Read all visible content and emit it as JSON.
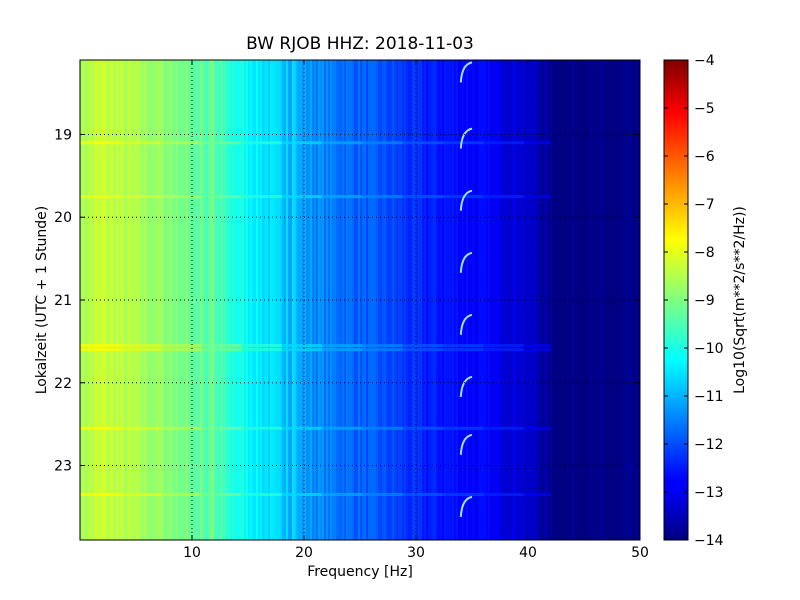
{
  "chart_data": {
    "type": "heatmap",
    "title": "BW RJOB HHZ: 2018-11-03",
    "xlabel": "Frequency [Hz]",
    "ylabel": "Lokalzeit (UTC + 1 Stunde)",
    "xlim": [
      0,
      50
    ],
    "ylim": [
      18.1,
      23.9
    ],
    "y_inverted": true,
    "x_ticks": [
      10,
      20,
      30,
      40,
      50
    ],
    "x_tick_labels": [
      "10",
      "20",
      "30",
      "40",
      "50"
    ],
    "y_ticks": [
      19,
      20,
      21,
      22,
      23
    ],
    "y_tick_labels": [
      "19",
      "20",
      "21",
      "22",
      "23"
    ],
    "grid": true,
    "colormap": "jet",
    "colorbar": {
      "label": "Log10(Sqrt(m**2/s**2/Hz))",
      "min": -14,
      "max": -4,
      "ticks": [
        -4,
        -5,
        -6,
        -7,
        -8,
        -9,
        -10,
        -11,
        -12,
        -13,
        -14
      ],
      "tick_labels": [
        "−4",
        "−5",
        "−6",
        "−7",
        "−8",
        "−9",
        "−10",
        "−11",
        "−12",
        "−13",
        "−14"
      ]
    },
    "spectral_profile": {
      "frequency_hz": [
        0,
        2,
        5,
        8,
        10,
        12,
        14,
        16,
        18,
        20,
        22,
        25,
        28,
        30,
        33,
        36,
        38,
        40,
        41,
        42,
        45,
        50
      ],
      "log10_amplitude": [
        -8.6,
        -8.3,
        -8.6,
        -8.9,
        -9.2,
        -9.6,
        -10.0,
        -10.4,
        -10.8,
        -11.2,
        -11.5,
        -11.8,
        -12.1,
        -12.4,
        -12.6,
        -12.8,
        -13.0,
        -13.2,
        -13.5,
        -13.9,
        -14.0,
        -14.0
      ]
    },
    "tonal_lines_hz": [
      10.8,
      11.8,
      12.6,
      18.5,
      19.1
    ],
    "broadband_events_hour": [
      19.1,
      19.75,
      21.55,
      21.6,
      22.55,
      23.35
    ],
    "chirp_feature": {
      "frequency_hz": [
        34,
        35
      ],
      "times_hour": [
        18.25,
        19.05,
        19.8,
        20.55,
        21.3,
        22.05,
        22.75,
        23.5
      ]
    }
  }
}
